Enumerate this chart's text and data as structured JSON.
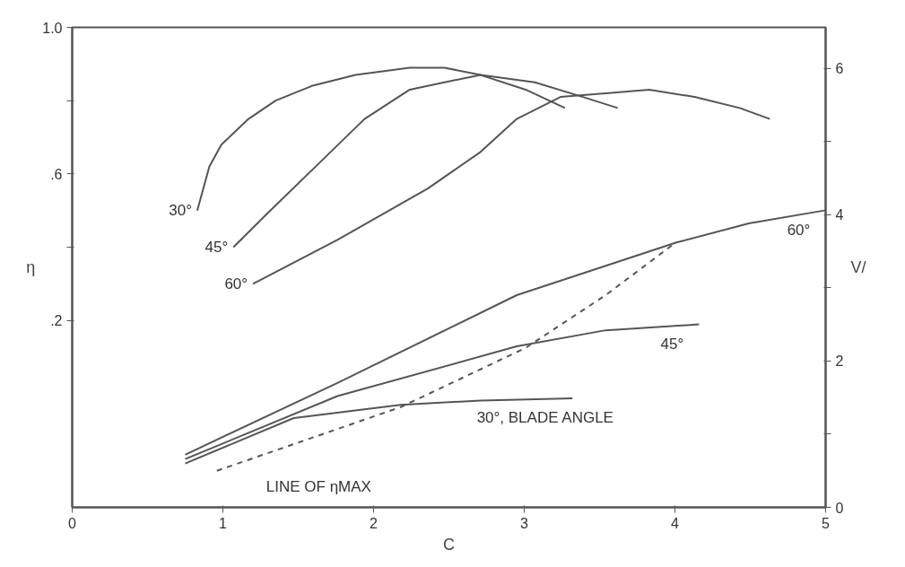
{
  "chart_data": {
    "type": "line",
    "xlabel": "C",
    "ylabel": "η",
    "y2label": "V/",
    "xlim": [
      0,
      5
    ],
    "xticks": [
      0,
      1,
      2,
      3,
      4,
      5
    ],
    "ylim": [
      -0.31,
      1.0
    ],
    "yticks": [
      {
        "value": 1.0,
        "label": "1.0"
      },
      {
        "value": 0.8,
        "label": null
      },
      {
        "value": 0.6,
        "label": ".6"
      },
      {
        "value": 0.4,
        "label": null
      },
      {
        "value": 0.2,
        "label": ".2"
      }
    ],
    "y2lim": [
      0,
      6.56
    ],
    "y2ticks": [
      0,
      {
        "value": 1,
        "label": null
      },
      2,
      {
        "value": 3,
        "label": null
      },
      4,
      {
        "value": 5,
        "label": null
      },
      6
    ],
    "grid": false,
    "marker": "none",
    "line_style": "solid",
    "series": [
      {
        "name": "30°",
        "color": "#555555",
        "x": [
          0.83,
          0.91,
          0.99,
          1.17,
          1.35,
          1.59,
          1.88,
          2.24,
          2.47,
          2.71,
          3.01,
          3.27
        ],
        "values": [
          0.5,
          0.62,
          0.68,
          0.75,
          0.8,
          0.84,
          0.87,
          0.89,
          0.89,
          0.87,
          0.83,
          0.78
        ]
      },
      {
        "name": "45°",
        "color": "#555555",
        "x": [
          1.07,
          1.29,
          1.64,
          1.94,
          2.24,
          2.47,
          2.71,
          3.07,
          3.39,
          3.62
        ],
        "values": [
          0.4,
          0.49,
          0.63,
          0.75,
          0.83,
          0.85,
          0.87,
          0.85,
          0.81,
          0.78
        ]
      },
      {
        "name": "60°",
        "color": "#555555",
        "x": [
          1.2,
          1.76,
          2.36,
          2.71,
          2.95,
          3.24,
          3.54,
          3.83,
          4.13,
          4.43,
          4.63
        ],
        "values": [
          0.3,
          0.42,
          0.56,
          0.66,
          0.75,
          0.81,
          0.82,
          0.83,
          0.81,
          0.78,
          0.75
        ]
      },
      {
        "name": "60°",
        "color": "#555555",
        "axis": "y2",
        "x": [
          0.75,
          1.76,
          2.95,
          4.01,
          4.49,
          5.0
        ],
        "values": [
          0.72,
          1.7,
          2.9,
          3.62,
          3.88,
          4.06
        ]
      },
      {
        "name": "45°",
        "color": "#555555",
        "axis": "y2",
        "x": [
          0.75,
          1.76,
          2.95,
          3.54,
          4.16
        ],
        "values": [
          0.66,
          1.52,
          2.2,
          2.42,
          2.5
        ]
      },
      {
        "name": "30°, BLADE ANGLE",
        "color": "#555555",
        "axis": "y2",
        "x": [
          0.75,
          1.47,
          2.18,
          2.71,
          3.32
        ],
        "values": [
          0.6,
          1.22,
          1.4,
          1.46,
          1.49
        ]
      },
      {
        "name": "LINE OF ηMAX",
        "color": "#555555",
        "axis": "y2",
        "line_style": "dashed",
        "x": [
          0.96,
          2.18,
          3.01,
          3.54,
          3.98
        ],
        "values": [
          0.5,
          1.37,
          2.18,
          2.9,
          3.58
        ]
      }
    ]
  }
}
